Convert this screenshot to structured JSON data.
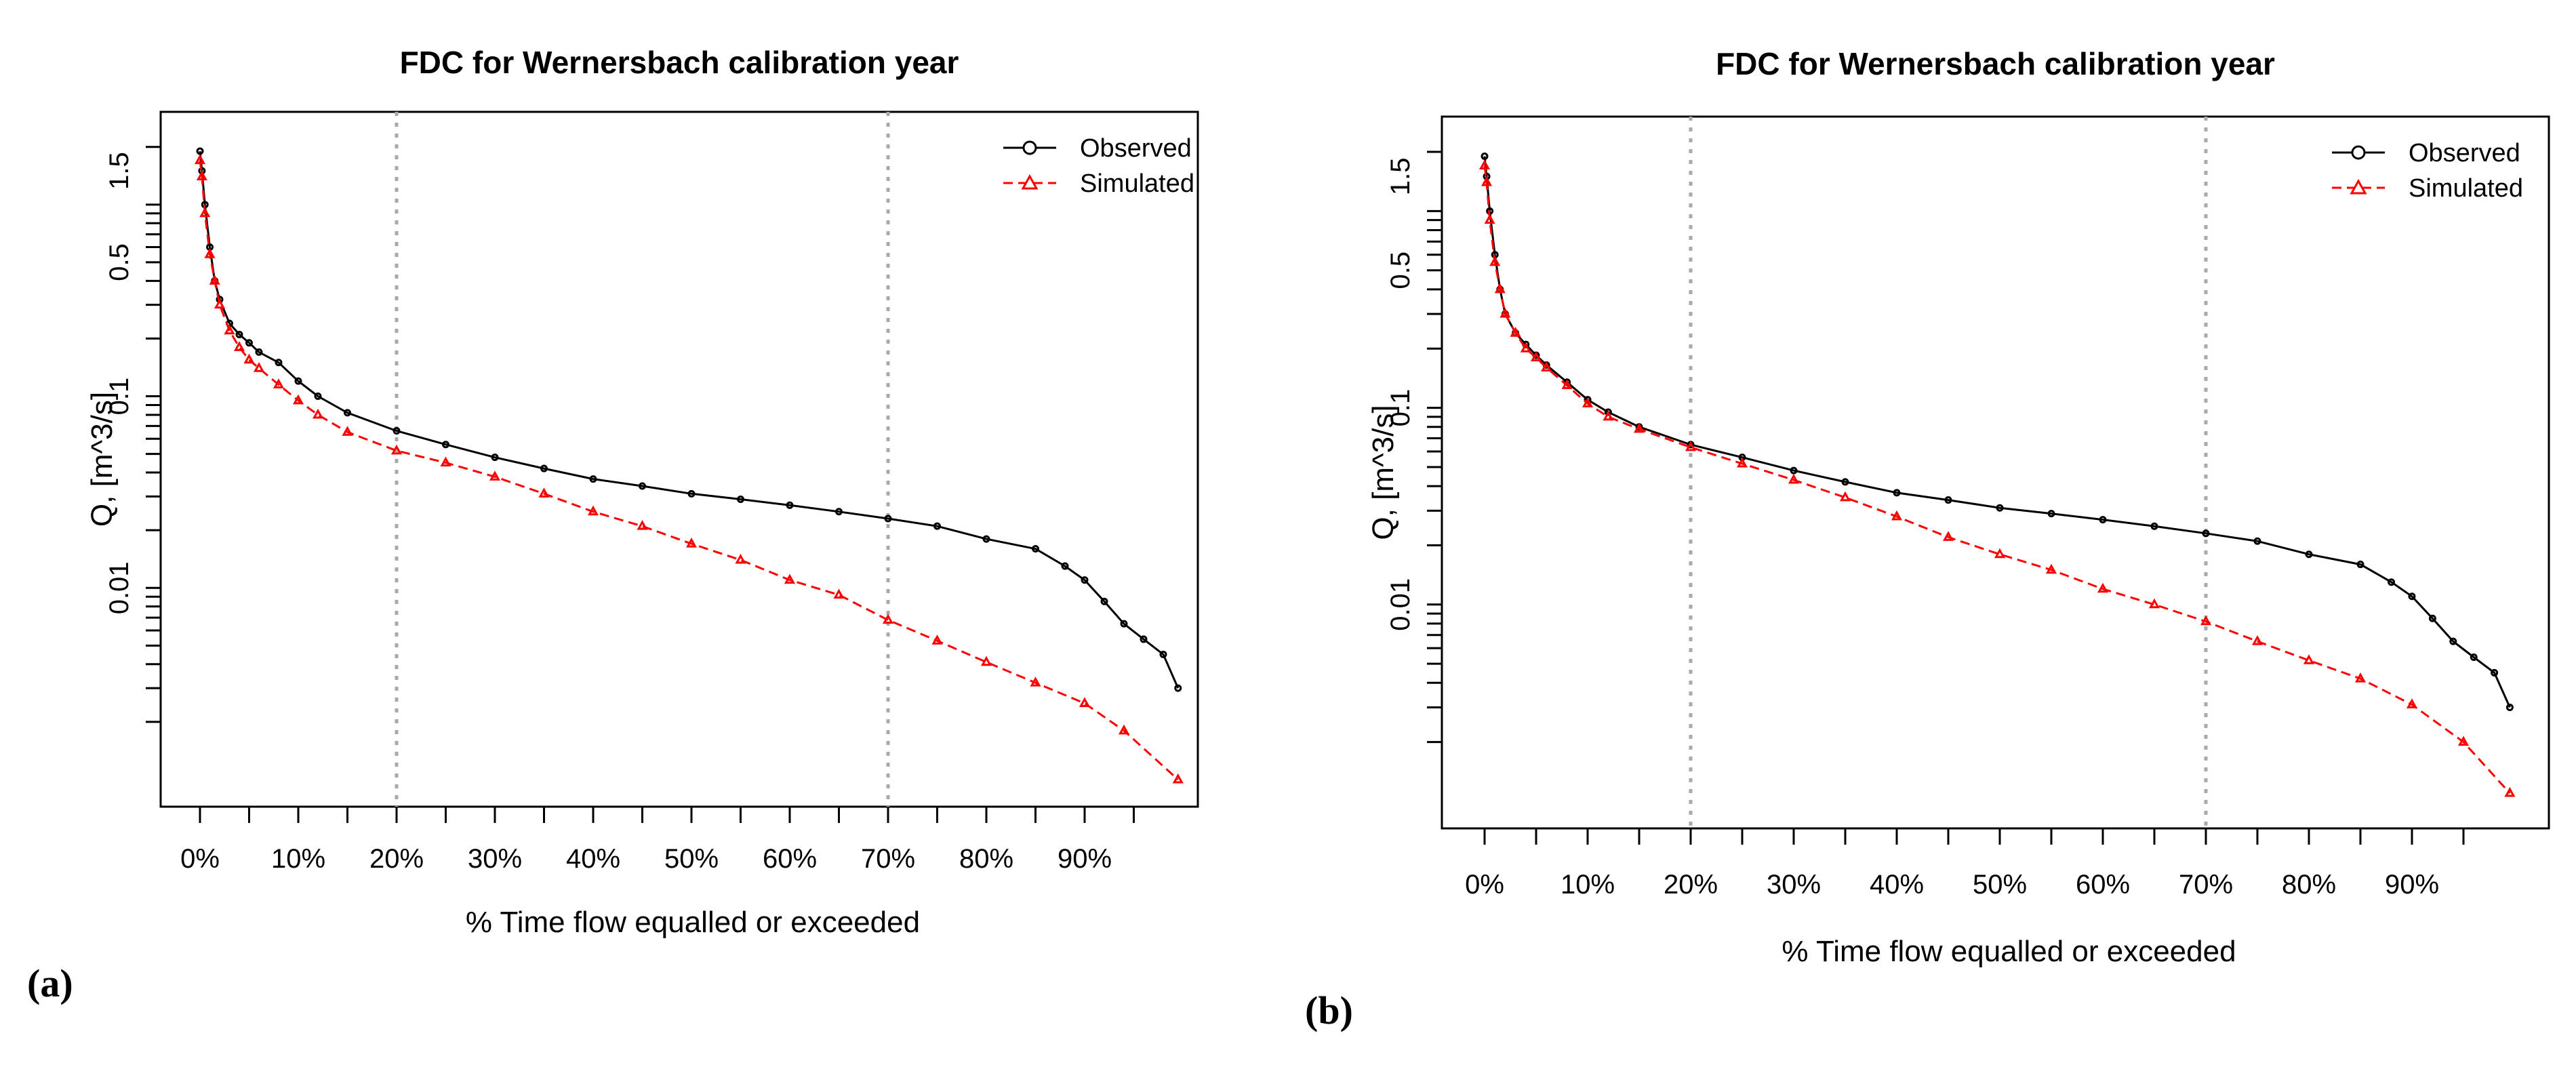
{
  "chart_data": [
    {
      "type": "line",
      "panel_label": "(a)",
      "title": "FDC for Wernersbach calibration year",
      "xlabel": "% Time flow equalled or exceeded",
      "ylabel": "Q, [m^3/s]",
      "x_ticks": [
        "0%",
        "10%",
        "20%",
        "30%",
        "40%",
        "50%",
        "60%",
        "70%",
        "80%",
        "90%"
      ],
      "y_ticks": [
        "0.01",
        "0.1",
        "0.5",
        "1.5"
      ],
      "y_scale": "log",
      "xlim": [
        0,
        100
      ],
      "ylim": [
        0.001,
        2.2
      ],
      "vlines": [
        20,
        70
      ],
      "legend_position": "top-right",
      "series": [
        {
          "name": "Observed",
          "color": "#000000",
          "line": "solid",
          "marker": "circle",
          "x": [
            0,
            0.2,
            0.5,
            1,
            1.5,
            2,
            3,
            4,
            5,
            6,
            8,
            10,
            12,
            15,
            20,
            25,
            30,
            35,
            40,
            45,
            50,
            55,
            60,
            65,
            70,
            75,
            80,
            85,
            88,
            90,
            92,
            94,
            96,
            98,
            99.5
          ],
          "y": [
            1.9,
            1.5,
            1.0,
            0.6,
            0.4,
            0.32,
            0.24,
            0.21,
            0.19,
            0.17,
            0.15,
            0.12,
            0.1,
            0.082,
            0.066,
            0.056,
            0.048,
            0.042,
            0.037,
            0.034,
            0.031,
            0.029,
            0.027,
            0.025,
            0.023,
            0.021,
            0.018,
            0.016,
            0.013,
            0.011,
            0.0085,
            0.0065,
            0.0054,
            0.0045,
            0.003
          ]
        },
        {
          "name": "Simulated",
          "color": "#ff0000",
          "line": "dashed",
          "marker": "triangle",
          "x": [
            0,
            0.2,
            0.5,
            1,
            1.5,
            2,
            3,
            4,
            5,
            6,
            8,
            10,
            12,
            15,
            20,
            25,
            30,
            35,
            40,
            45,
            50,
            55,
            60,
            65,
            70,
            75,
            80,
            85,
            90,
            94,
            99.5
          ],
          "y": [
            1.7,
            1.4,
            0.9,
            0.55,
            0.4,
            0.3,
            0.22,
            0.18,
            0.155,
            0.14,
            0.115,
            0.095,
            0.08,
            0.065,
            0.052,
            0.045,
            0.038,
            0.031,
            0.025,
            0.021,
            0.017,
            0.014,
            0.011,
            0.0092,
            0.0068,
            0.0053,
            0.0041,
            0.0032,
            0.0025,
            0.0018,
            0.001
          ]
        }
      ]
    },
    {
      "type": "line",
      "panel_label": "(b)",
      "title": "FDC for Wernersbach calibration year",
      "xlabel": "% Time flow equalled or exceeded",
      "ylabel": "Q, [m^3/s]",
      "x_ticks": [
        "0%",
        "10%",
        "20%",
        "30%",
        "40%",
        "50%",
        "60%",
        "70%",
        "80%",
        "90%"
      ],
      "y_ticks": [
        "0.01",
        "0.1",
        "0.5",
        "1.5"
      ],
      "y_scale": "log",
      "xlim": [
        0,
        100
      ],
      "ylim": [
        0.001,
        2.2
      ],
      "vlines": [
        20,
        70
      ],
      "legend_position": "top-right",
      "series": [
        {
          "name": "Observed",
          "color": "#000000",
          "line": "solid",
          "marker": "circle",
          "x": [
            0,
            0.2,
            0.5,
            1,
            1.5,
            2,
            3,
            4,
            5,
            6,
            8,
            10,
            12,
            15,
            20,
            25,
            30,
            35,
            40,
            45,
            50,
            55,
            60,
            65,
            70,
            75,
            80,
            85,
            88,
            90,
            92,
            94,
            96,
            98,
            99.5
          ],
          "y": [
            1.9,
            1.5,
            1.0,
            0.6,
            0.4,
            0.3,
            0.24,
            0.21,
            0.185,
            0.165,
            0.135,
            0.11,
            0.095,
            0.08,
            0.065,
            0.056,
            0.048,
            0.042,
            0.037,
            0.034,
            0.031,
            0.029,
            0.027,
            0.025,
            0.023,
            0.021,
            0.018,
            0.016,
            0.013,
            0.011,
            0.0085,
            0.0065,
            0.0054,
            0.0045,
            0.003
          ]
        },
        {
          "name": "Simulated",
          "color": "#ff0000",
          "line": "dashed",
          "marker": "triangle",
          "x": [
            0,
            0.2,
            0.5,
            1,
            1.5,
            2,
            3,
            4,
            5,
            6,
            8,
            10,
            12,
            15,
            20,
            25,
            30,
            35,
            40,
            45,
            50,
            55,
            60,
            65,
            70,
            75,
            80,
            85,
            90,
            95,
            99.5
          ],
          "y": [
            1.7,
            1.4,
            0.9,
            0.55,
            0.4,
            0.3,
            0.24,
            0.2,
            0.18,
            0.16,
            0.13,
            0.105,
            0.09,
            0.078,
            0.063,
            0.052,
            0.043,
            0.035,
            0.028,
            0.022,
            0.018,
            0.015,
            0.012,
            0.01,
            0.0082,
            0.0065,
            0.0052,
            0.0042,
            0.0031,
            0.002,
            0.0011
          ]
        }
      ]
    }
  ]
}
